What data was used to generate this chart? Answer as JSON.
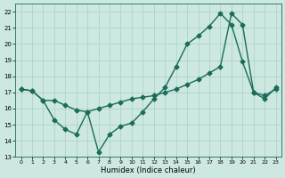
{
  "line1_x": [
    0,
    1,
    2,
    3,
    4,
    5,
    6,
    7,
    8,
    9,
    10,
    11,
    12,
    13,
    14,
    15,
    16,
    17,
    18,
    19,
    20,
    21,
    22,
    23
  ],
  "line1_y": [
    17.2,
    17.1,
    16.5,
    15.3,
    14.7,
    14.4,
    15.8,
    13.3,
    14.4,
    14.9,
    15.1,
    15.8,
    16.6,
    17.3,
    18.6,
    20.0,
    20.5,
    21.1,
    21.9,
    21.2,
    18.9,
    17.0,
    16.6,
    17.3
  ],
  "line2_x": [
    0,
    1,
    2,
    3,
    4,
    5,
    6,
    7,
    8,
    9,
    10,
    11,
    12,
    13,
    14,
    15,
    16,
    17,
    18,
    19,
    20,
    21,
    22,
    23
  ],
  "line2_y": [
    17.2,
    17.1,
    16.5,
    16.5,
    16.2,
    15.9,
    15.8,
    16.0,
    16.2,
    16.4,
    16.6,
    16.7,
    16.8,
    17.0,
    17.2,
    17.5,
    17.8,
    18.2,
    18.6,
    21.9,
    21.2,
    17.0,
    16.8,
    17.2
  ],
  "line_color": "#1a6b5a",
  "marker": "D",
  "markersize": 2.5,
  "linewidth": 1.0,
  "xlabel": "Humidex (Indice chaleur)",
  "ylim": [
    13,
    22.5
  ],
  "xlim": [
    -0.5,
    23.5
  ],
  "yticks": [
    13,
    14,
    15,
    16,
    17,
    18,
    19,
    20,
    21,
    22
  ],
  "xticks": [
    0,
    1,
    2,
    3,
    4,
    5,
    6,
    7,
    8,
    9,
    10,
    11,
    12,
    13,
    14,
    15,
    16,
    17,
    18,
    19,
    20,
    21,
    22,
    23
  ],
  "bg_color": "#cce8e0",
  "grid_color": "#aacfc8"
}
